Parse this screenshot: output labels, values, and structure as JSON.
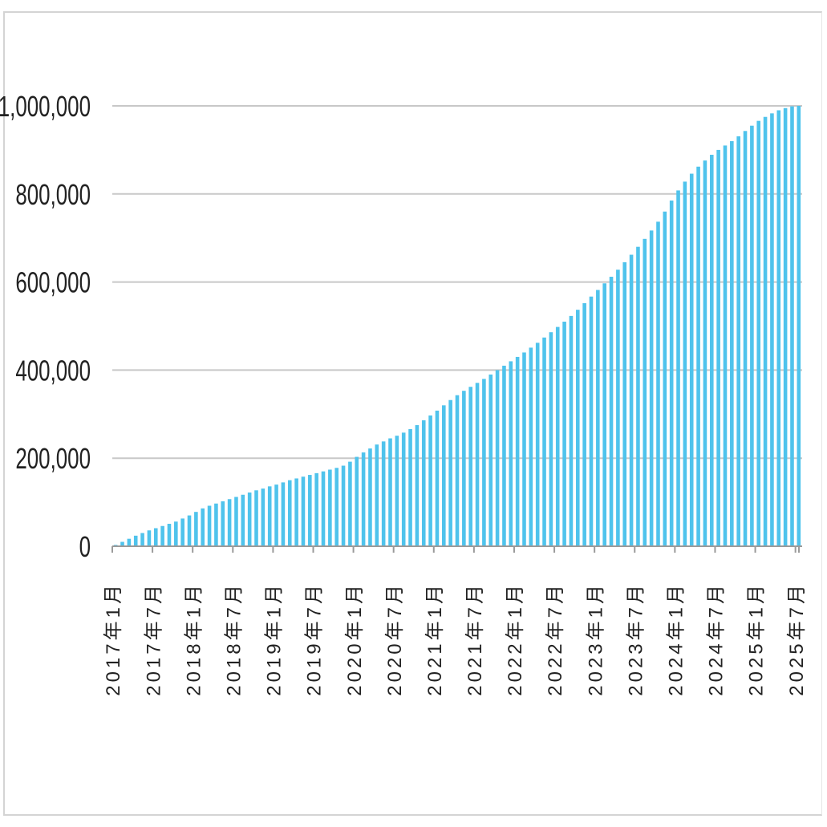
{
  "chart_data": {
    "type": "bar",
    "title": "",
    "xlabel": "",
    "ylabel": "",
    "ylim": [
      0,
      1000000
    ],
    "grid": true,
    "bar_color": "#4fc3ec",
    "grid_color": "#c8c8c8",
    "y_ticks": [
      {
        "value": 0,
        "label": "0"
      },
      {
        "value": 200000,
        "label": "200,000"
      },
      {
        "value": 400000,
        "label": "400,000"
      },
      {
        "value": 600000,
        "label": "600,000"
      },
      {
        "value": 800000,
        "label": "800,000"
      },
      {
        "value": 1000000,
        "label": "1,000,000"
      }
    ],
    "x_ticks": [
      {
        "index": 0,
        "label": "2017年1月"
      },
      {
        "index": 6,
        "label": "2017年7月"
      },
      {
        "index": 12,
        "label": "2018年1月"
      },
      {
        "index": 18,
        "label": "2018年7月"
      },
      {
        "index": 24,
        "label": "2019年1月"
      },
      {
        "index": 30,
        "label": "2019年7月"
      },
      {
        "index": 36,
        "label": "2020年1月"
      },
      {
        "index": 42,
        "label": "2020年7月"
      },
      {
        "index": 48,
        "label": "2021年1月"
      },
      {
        "index": 54,
        "label": "2021年7月"
      },
      {
        "index": 60,
        "label": "2022年1月"
      },
      {
        "index": 66,
        "label": "2022年7月"
      },
      {
        "index": 72,
        "label": "2023年1月"
      },
      {
        "index": 78,
        "label": "2023年7月"
      },
      {
        "index": 84,
        "label": "2024年1月"
      },
      {
        "index": 90,
        "label": "2024年7月"
      },
      {
        "index": 96,
        "label": "2025年1月"
      },
      {
        "index": 102,
        "label": "2025年7月"
      }
    ],
    "categories": [
      "2017年1月",
      "2017年2月",
      "2017年3月",
      "2017年4月",
      "2017年5月",
      "2017年6月",
      "2017年7月",
      "2017年8月",
      "2017年9月",
      "2017年10月",
      "2017年11月",
      "2017年12月",
      "2018年1月",
      "2018年2月",
      "2018年3月",
      "2018年4月",
      "2018年5月",
      "2018年6月",
      "2018年7月",
      "2018年8月",
      "2018年9月",
      "2018年10月",
      "2018年11月",
      "2018年12月",
      "2019年1月",
      "2019年2月",
      "2019年3月",
      "2019年4月",
      "2019年5月",
      "2019年6月",
      "2019年7月",
      "2019年8月",
      "2019年9月",
      "2019年10月",
      "2019年11月",
      "2019年12月",
      "2020年1月",
      "2020年2月",
      "2020年3月",
      "2020年4月",
      "2020年5月",
      "2020年6月",
      "2020年7月",
      "2020年8月",
      "2020年9月",
      "2020年10月",
      "2020年11月",
      "2020年12月",
      "2021年1月",
      "2021年2月",
      "2021年3月",
      "2021年4月",
      "2021年5月",
      "2021年6月",
      "2021年7月",
      "2021年8月",
      "2021年9月",
      "2021年10月",
      "2021年11月",
      "2021年12月",
      "2022年1月",
      "2022年2月",
      "2022年3月",
      "2022年4月",
      "2022年5月",
      "2022年6月",
      "2022年7月",
      "2022年8月",
      "2022年9月",
      "2022年10月",
      "2022年11月",
      "2022年12月",
      "2023年1月",
      "2023年2月",
      "2023年3月",
      "2023年4月",
      "2023年5月",
      "2023年6月",
      "2023年7月",
      "2023年8月",
      "2023年9月",
      "2023年10月",
      "2023年11月",
      "2023年12月",
      "2024年1月",
      "2024年2月",
      "2024年3月",
      "2024年4月",
      "2024年5月",
      "2024年6月",
      "2024年7月",
      "2024年8月",
      "2024年9月",
      "2024年10月",
      "2024年11月",
      "2024年12月",
      "2025年1月",
      "2025年2月",
      "2025年3月",
      "2025年4月",
      "2025年5月",
      "2025年6月",
      "2025年7月"
    ],
    "values": [
      3000,
      10000,
      17000,
      24000,
      30000,
      36000,
      41000,
      46000,
      51000,
      56000,
      63000,
      70000,
      78000,
      86000,
      92000,
      97000,
      102000,
      107000,
      112000,
      117000,
      122000,
      127000,
      131000,
      136000,
      140000,
      145000,
      150000,
      154000,
      158000,
      162000,
      166000,
      170000,
      174000,
      178000,
      183000,
      192000,
      203000,
      213000,
      222000,
      231000,
      238000,
      245000,
      251000,
      258000,
      266000,
      275000,
      286000,
      297000,
      308000,
      320000,
      332000,
      343000,
      353000,
      362000,
      371000,
      380000,
      390000,
      400000,
      410000,
      420000,
      430000,
      440000,
      451000,
      462000,
      474000,
      486000,
      498000,
      510000,
      523000,
      537000,
      552000,
      567000,
      582000,
      597000,
      612000,
      628000,
      645000,
      662000,
      680000,
      698000,
      717000,
      737000,
      760000,
      785000,
      808000,
      828000,
      846000,
      862000,
      876000,
      889000,
      900000,
      910000,
      920000,
      931000,
      943000,
      955000,
      966000,
      975000,
      983000,
      990000,
      995000,
      999000,
      1000000
    ]
  }
}
